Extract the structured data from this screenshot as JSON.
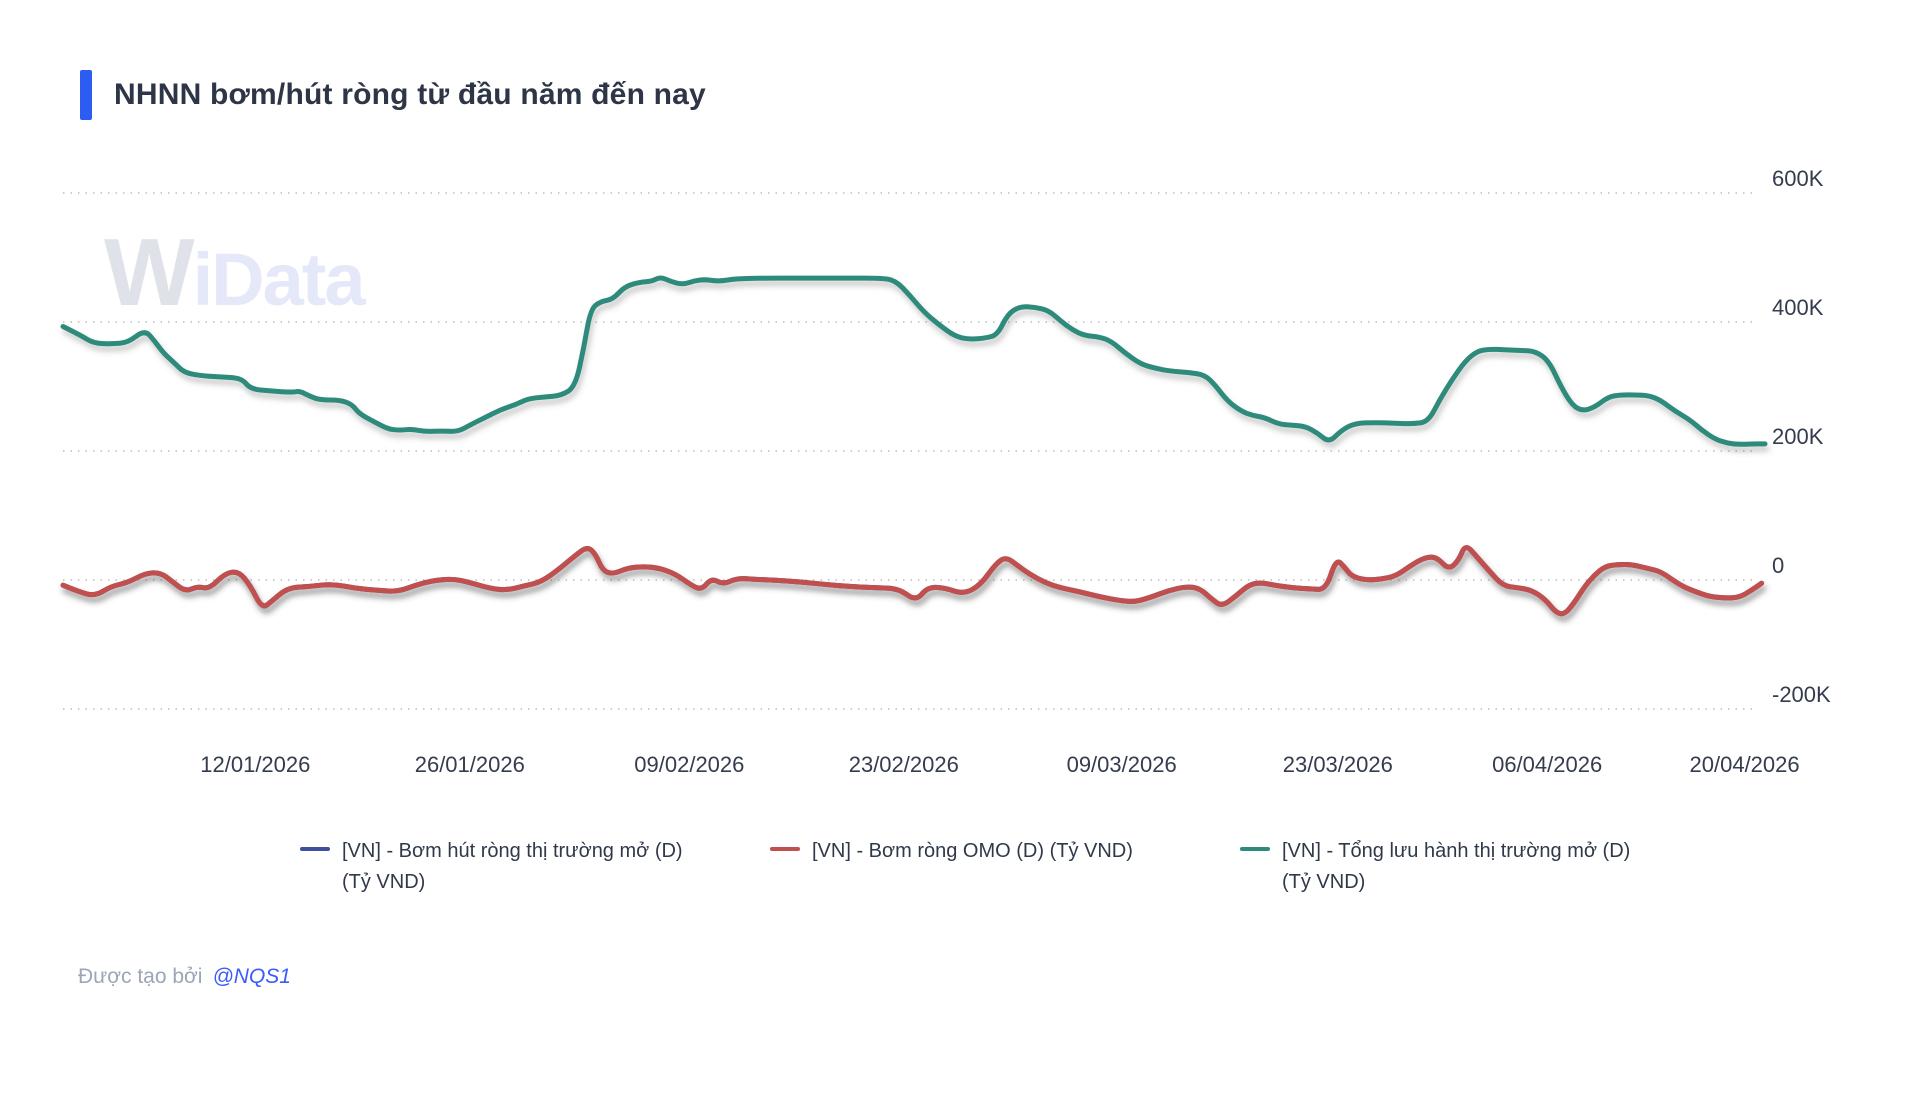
{
  "header": {
    "title": "NHNN bơm/hút ròng từ đầu năm đến nay",
    "accent_color": "#2d5cf2"
  },
  "watermark": {
    "part1": "W",
    "part2": "iData"
  },
  "footer": {
    "prefix": "Được tạo bởi",
    "author": "@NQS1"
  },
  "chart_data": {
    "type": "line",
    "title": "NHNN bơm/hút ròng từ đầu năm đến nay",
    "unit": "nghìn tỷ VND (K)",
    "grid": "horizontal dotted",
    "legend_position": "bottom",
    "x_axis_note": "t = vị trí tương đối theo thời gian, 0 = đầu năm 2026, 1 = 20/04/2026",
    "x_ticks": [
      {
        "t": 0.113,
        "label": "12/01/2026"
      },
      {
        "t": 0.239,
        "label": "26/01/2026"
      },
      {
        "t": 0.368,
        "label": "09/02/2026"
      },
      {
        "t": 0.494,
        "label": "23/02/2026"
      },
      {
        "t": 0.622,
        "label": "09/03/2026"
      },
      {
        "t": 0.749,
        "label": "23/03/2026"
      },
      {
        "t": 0.872,
        "label": "06/04/2026"
      },
      {
        "t": 0.988,
        "label": "20/04/2026"
      }
    ],
    "y_ticks": [
      {
        "value": 600,
        "label": "600K"
      },
      {
        "value": 400,
        "label": "400K"
      },
      {
        "value": 200,
        "label": "200K"
      },
      {
        "value": 0,
        "label": "0"
      },
      {
        "value": -200,
        "label": "-200K"
      }
    ],
    "y_range_k": [
      -260,
      660
    ],
    "series": [
      {
        "name": "[VN] - Bơm hút ròng thị trường mở (D) (Tỷ VND)",
        "color": "#3f4fa0",
        "points": [],
        "note": "đường này trùng với đường Bơm ròng OMO nên bị che khuất phía dưới"
      },
      {
        "name": "[VN] - Bơm ròng OMO (D) (Tỷ VND)",
        "color": "#c0504d",
        "points": [
          [
            0.0,
            -8
          ],
          [
            0.009,
            -18
          ],
          [
            0.019,
            -25
          ],
          [
            0.028,
            -10
          ],
          [
            0.038,
            -4
          ],
          [
            0.048,
            10
          ],
          [
            0.057,
            12
          ],
          [
            0.064,
            -2
          ],
          [
            0.072,
            -18
          ],
          [
            0.079,
            -10
          ],
          [
            0.086,
            -14
          ],
          [
            0.095,
            10
          ],
          [
            0.103,
            14
          ],
          [
            0.11,
            -8
          ],
          [
            0.117,
            -45
          ],
          [
            0.123,
            -32
          ],
          [
            0.132,
            -12
          ],
          [
            0.145,
            -10
          ],
          [
            0.158,
            -6
          ],
          [
            0.172,
            -13
          ],
          [
            0.185,
            -16
          ],
          [
            0.197,
            -18
          ],
          [
            0.207,
            -8
          ],
          [
            0.217,
            -1
          ],
          [
            0.229,
            2
          ],
          [
            0.239,
            -4
          ],
          [
            0.251,
            -13
          ],
          [
            0.261,
            -16
          ],
          [
            0.271,
            -9
          ],
          [
            0.281,
            -3
          ],
          [
            0.292,
            18
          ],
          [
            0.301,
            38
          ],
          [
            0.308,
            52
          ],
          [
            0.313,
            40
          ],
          [
            0.317,
            15
          ],
          [
            0.323,
            9
          ],
          [
            0.332,
            19
          ],
          [
            0.342,
            21
          ],
          [
            0.351,
            18
          ],
          [
            0.36,
            9
          ],
          [
            0.368,
            -6
          ],
          [
            0.375,
            -16
          ],
          [
            0.381,
            3
          ],
          [
            0.388,
            -7
          ],
          [
            0.396,
            3
          ],
          [
            0.407,
            1
          ],
          [
            0.418,
            0
          ],
          [
            0.433,
            -3
          ],
          [
            0.448,
            -7
          ],
          [
            0.462,
            -10
          ],
          [
            0.477,
            -12
          ],
          [
            0.491,
            -13
          ],
          [
            0.501,
            -33
          ],
          [
            0.508,
            -11
          ],
          [
            0.518,
            -12
          ],
          [
            0.529,
            -22
          ],
          [
            0.539,
            -8
          ],
          [
            0.548,
            25
          ],
          [
            0.554,
            36
          ],
          [
            0.561,
            22
          ],
          [
            0.568,
            9
          ],
          [
            0.577,
            -4
          ],
          [
            0.586,
            -12
          ],
          [
            0.597,
            -18
          ],
          [
            0.609,
            -26
          ],
          [
            0.621,
            -32
          ],
          [
            0.63,
            -34
          ],
          [
            0.64,
            -26
          ],
          [
            0.65,
            -16
          ],
          [
            0.66,
            -10
          ],
          [
            0.668,
            -13
          ],
          [
            0.675,
            -30
          ],
          [
            0.681,
            -41
          ],
          [
            0.689,
            -25
          ],
          [
            0.697,
            -7
          ],
          [
            0.704,
            -4
          ],
          [
            0.712,
            -8
          ],
          [
            0.722,
            -12
          ],
          [
            0.733,
            -14
          ],
          [
            0.742,
            -15
          ],
          [
            0.748,
            33
          ],
          [
            0.753,
            20
          ],
          [
            0.757,
            6
          ],
          [
            0.765,
            0
          ],
          [
            0.774,
            1
          ],
          [
            0.783,
            6
          ],
          [
            0.791,
            21
          ],
          [
            0.8,
            35
          ],
          [
            0.807,
            36
          ],
          [
            0.814,
            16
          ],
          [
            0.82,
            30
          ],
          [
            0.824,
            56
          ],
          [
            0.831,
            35
          ],
          [
            0.838,
            14
          ],
          [
            0.846,
            -9
          ],
          [
            0.855,
            -12
          ],
          [
            0.863,
            -16
          ],
          [
            0.871,
            -30
          ],
          [
            0.877,
            -50
          ],
          [
            0.882,
            -54
          ],
          [
            0.888,
            -35
          ],
          [
            0.894,
            -10
          ],
          [
            0.9,
            8
          ],
          [
            0.906,
            21
          ],
          [
            0.913,
            24
          ],
          [
            0.922,
            24
          ],
          [
            0.931,
            18
          ],
          [
            0.939,
            13
          ],
          [
            0.95,
            -8
          ],
          [
            0.959,
            -18
          ],
          [
            0.968,
            -26
          ],
          [
            0.977,
            -28
          ],
          [
            0.985,
            -27
          ],
          [
            0.992,
            -16
          ],
          [
            0.998,
            -5
          ]
        ]
      },
      {
        "name": "[VN] - Tổng lưu hành thị trường mở (D) (Tỷ VND)",
        "color": "#2e8b7c",
        "points": [
          [
            0.0,
            393
          ],
          [
            0.01,
            380
          ],
          [
            0.018,
            367
          ],
          [
            0.029,
            366
          ],
          [
            0.038,
            368
          ],
          [
            0.048,
            388
          ],
          [
            0.054,
            370
          ],
          [
            0.059,
            352
          ],
          [
            0.066,
            335
          ],
          [
            0.071,
            322
          ],
          [
            0.08,
            317
          ],
          [
            0.092,
            315
          ],
          [
            0.105,
            313
          ],
          [
            0.11,
            296
          ],
          [
            0.122,
            293
          ],
          [
            0.135,
            291
          ],
          [
            0.139,
            293
          ],
          [
            0.145,
            285
          ],
          [
            0.151,
            279
          ],
          [
            0.163,
            279
          ],
          [
            0.17,
            272
          ],
          [
            0.174,
            258
          ],
          [
            0.183,
            245
          ],
          [
            0.191,
            234
          ],
          [
            0.198,
            232
          ],
          [
            0.205,
            234
          ],
          [
            0.213,
            230
          ],
          [
            0.222,
            231
          ],
          [
            0.232,
            230
          ],
          [
            0.239,
            240
          ],
          [
            0.248,
            252
          ],
          [
            0.257,
            264
          ],
          [
            0.266,
            272
          ],
          [
            0.273,
            281
          ],
          [
            0.283,
            284
          ],
          [
            0.293,
            286
          ],
          [
            0.301,
            300
          ],
          [
            0.306,
            360
          ],
          [
            0.31,
            420
          ],
          [
            0.316,
            432
          ],
          [
            0.323,
            435
          ],
          [
            0.33,
            455
          ],
          [
            0.339,
            462
          ],
          [
            0.346,
            463
          ],
          [
            0.351,
            470
          ],
          [
            0.357,
            463
          ],
          [
            0.364,
            458
          ],
          [
            0.371,
            464
          ],
          [
            0.377,
            466
          ],
          [
            0.385,
            463
          ],
          [
            0.395,
            467
          ],
          [
            0.409,
            468
          ],
          [
            0.433,
            468
          ],
          [
            0.462,
            468
          ],
          [
            0.48,
            468
          ],
          [
            0.489,
            465
          ],
          [
            0.498,
            440
          ],
          [
            0.506,
            415
          ],
          [
            0.515,
            395
          ],
          [
            0.524,
            378
          ],
          [
            0.532,
            373
          ],
          [
            0.542,
            375
          ],
          [
            0.549,
            380
          ],
          [
            0.555,
            412
          ],
          [
            0.562,
            424
          ],
          [
            0.571,
            423
          ],
          [
            0.579,
            418
          ],
          [
            0.586,
            402
          ],
          [
            0.593,
            388
          ],
          [
            0.6,
            379
          ],
          [
            0.609,
            377
          ],
          [
            0.616,
            370
          ],
          [
            0.624,
            352
          ],
          [
            0.633,
            335
          ],
          [
            0.642,
            328
          ],
          [
            0.65,
            324
          ],
          [
            0.661,
            322
          ],
          [
            0.671,
            318
          ],
          [
            0.677,
            302
          ],
          [
            0.684,
            278
          ],
          [
            0.692,
            262
          ],
          [
            0.699,
            255
          ],
          [
            0.706,
            252
          ],
          [
            0.714,
            242
          ],
          [
            0.722,
            240
          ],
          [
            0.73,
            238
          ],
          [
            0.737,
            228
          ],
          [
            0.744,
            213
          ],
          [
            0.751,
            232
          ],
          [
            0.759,
            243
          ],
          [
            0.771,
            244
          ],
          [
            0.783,
            243
          ],
          [
            0.793,
            242
          ],
          [
            0.802,
            245
          ],
          [
            0.809,
            280
          ],
          [
            0.816,
            310
          ],
          [
            0.824,
            340
          ],
          [
            0.831,
            355
          ],
          [
            0.838,
            358
          ],
          [
            0.847,
            357
          ],
          [
            0.856,
            356
          ],
          [
            0.865,
            355
          ],
          [
            0.873,
            340
          ],
          [
            0.88,
            300
          ],
          [
            0.887,
            270
          ],
          [
            0.893,
            262
          ],
          [
            0.9,
            268
          ],
          [
            0.908,
            284
          ],
          [
            0.915,
            287
          ],
          [
            0.924,
            287
          ],
          [
            0.932,
            286
          ],
          [
            0.939,
            278
          ],
          [
            0.947,
            262
          ],
          [
            0.956,
            248
          ],
          [
            0.963,
            232
          ],
          [
            0.971,
            218
          ],
          [
            0.978,
            212
          ],
          [
            0.985,
            210
          ],
          [
            0.992,
            211
          ],
          [
            1.0,
            211
          ]
        ]
      }
    ]
  }
}
